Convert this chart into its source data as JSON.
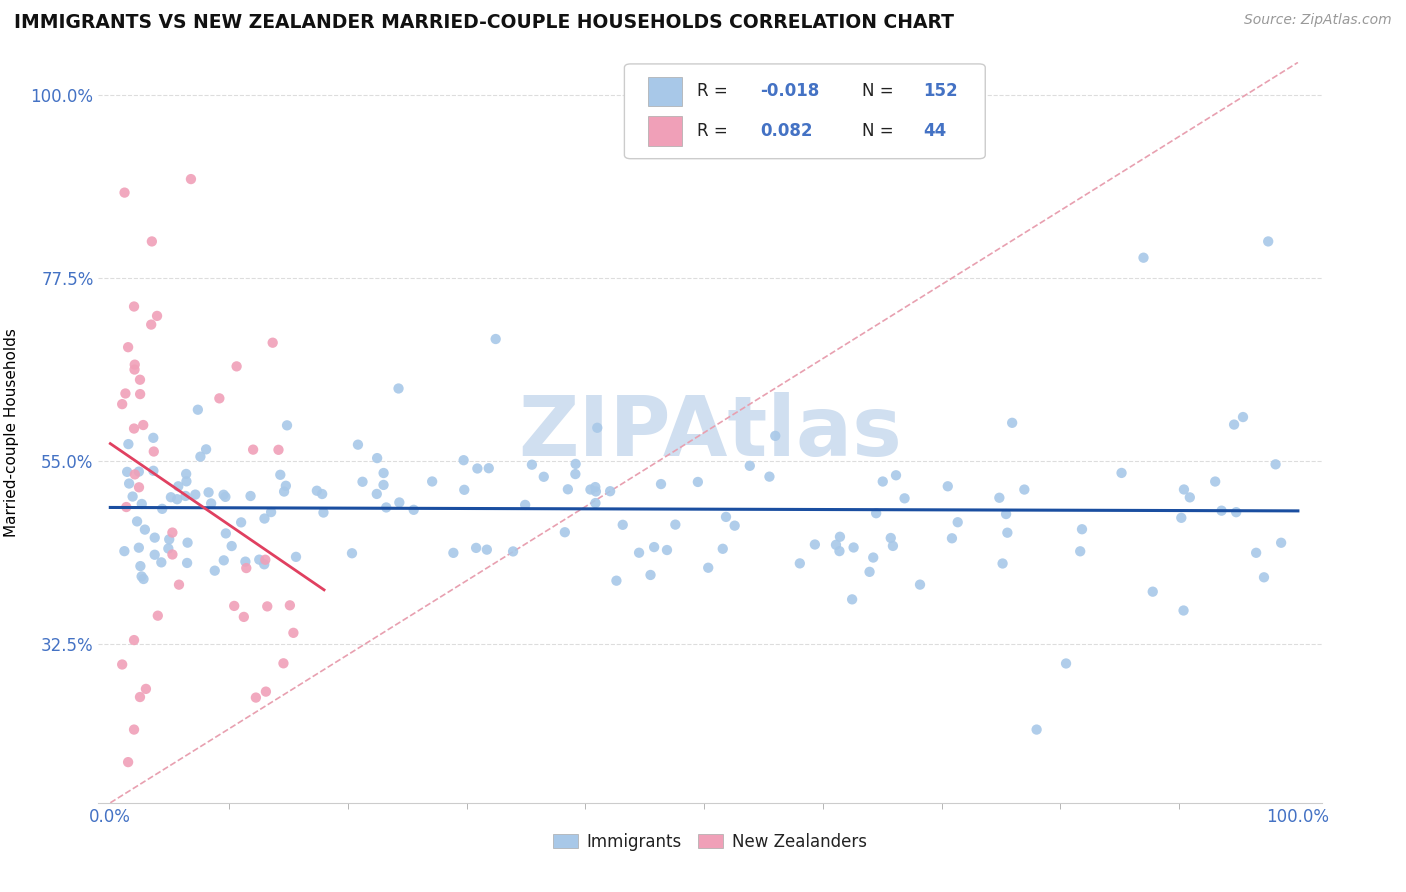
{
  "title": "IMMIGRANTS VS NEW ZEALANDER MARRIED-COUPLE HOUSEHOLDS CORRELATION CHART",
  "source": "Source: ZipAtlas.com",
  "ylabel": "Married-couple Households",
  "blue_R": -0.018,
  "blue_N": 152,
  "pink_R": 0.082,
  "pink_N": 44,
  "blue_color": "#a8c8e8",
  "pink_color": "#f0a0b8",
  "blue_line_color": "#1a4ea0",
  "pink_line_color": "#e04060",
  "diag_line_color": "#e8a0b0",
  "yticks": [
    0.325,
    0.55,
    0.775,
    1.0
  ],
  "ytick_labels": [
    "32.5%",
    "55.0%",
    "77.5%",
    "100.0%"
  ],
  "tick_color": "#4472c4",
  "grid_color": "#dddddd",
  "watermark_color": "#d0dff0",
  "ymin": 0.13,
  "ymax": 1.04,
  "xmin": -0.01,
  "xmax": 1.02
}
